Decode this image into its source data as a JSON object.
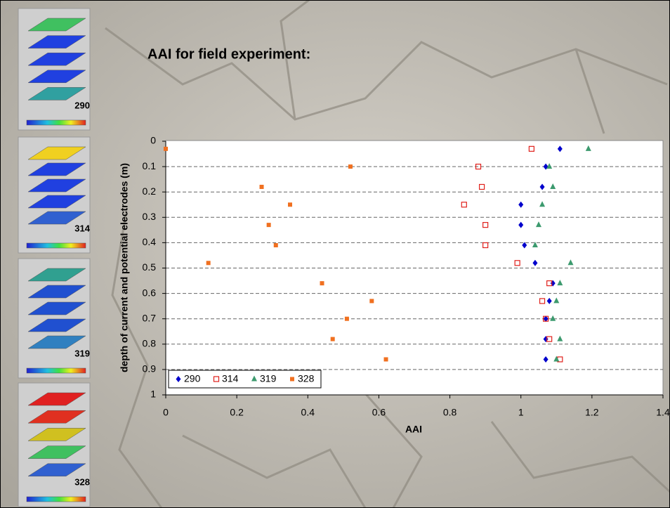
{
  "chart_data": {
    "type": "scatter",
    "title": "AAI for field experiment:",
    "xlabel": "AAI",
    "ylabel": "depth of current and potential electrodes (m)",
    "xlim": [
      0,
      1.4
    ],
    "xticks": [
      0,
      0.2,
      0.4,
      0.6,
      0.8,
      1,
      1.2,
      1.4
    ],
    "ylim": [
      0,
      1
    ],
    "y_inverted": true,
    "yticks": [
      0,
      0.1,
      0.2,
      0.3,
      0.4,
      0.5,
      0.6,
      0.7,
      0.8,
      0.9,
      1
    ],
    "grid": true,
    "legend": "lower left",
    "series": [
      {
        "name": "290",
        "color": "#0000cc",
        "marker": "diamond",
        "x": [
          1.11,
          1.07,
          1.06,
          1.0,
          1.0,
          1.01,
          1.04,
          1.09,
          1.08,
          1.07,
          1.07,
          1.07
        ],
        "y": [
          0.03,
          0.1,
          0.18,
          0.25,
          0.33,
          0.41,
          0.48,
          0.56,
          0.63,
          0.7,
          0.78,
          0.86
        ]
      },
      {
        "name": "314",
        "color": "#e0201b",
        "marker": "square-open",
        "x": [
          1.03,
          0.88,
          0.89,
          0.84,
          0.9,
          0.9,
          0.99,
          1.08,
          1.06,
          1.07,
          1.08,
          1.11
        ],
        "y": [
          0.03,
          0.1,
          0.18,
          0.25,
          0.33,
          0.41,
          0.48,
          0.56,
          0.63,
          0.7,
          0.78,
          0.86
        ]
      },
      {
        "name": "319",
        "color": "#3c9a6e",
        "marker": "triangle",
        "x": [
          1.19,
          1.08,
          1.09,
          1.06,
          1.05,
          1.04,
          1.14,
          1.11,
          1.1,
          1.09,
          1.11,
          1.1
        ],
        "y": [
          0.03,
          0.1,
          0.18,
          0.25,
          0.33,
          0.41,
          0.48,
          0.56,
          0.63,
          0.7,
          0.78,
          0.86
        ]
      },
      {
        "name": "328",
        "color": "#f07020",
        "marker": "square",
        "x": [
          0,
          0.52,
          0.27,
          0.35,
          0.29,
          0.31,
          0.12,
          0.44,
          0.58,
          0.51,
          0.47,
          0.62
        ],
        "y": [
          0.03,
          0.1,
          0.18,
          0.25,
          0.33,
          0.41,
          0.48,
          0.56,
          0.63,
          0.7,
          0.78,
          0.86
        ]
      }
    ]
  },
  "thumbnails": [
    {
      "label": "290"
    },
    {
      "label": "314"
    },
    {
      "label": "319"
    },
    {
      "label": "328"
    }
  ]
}
